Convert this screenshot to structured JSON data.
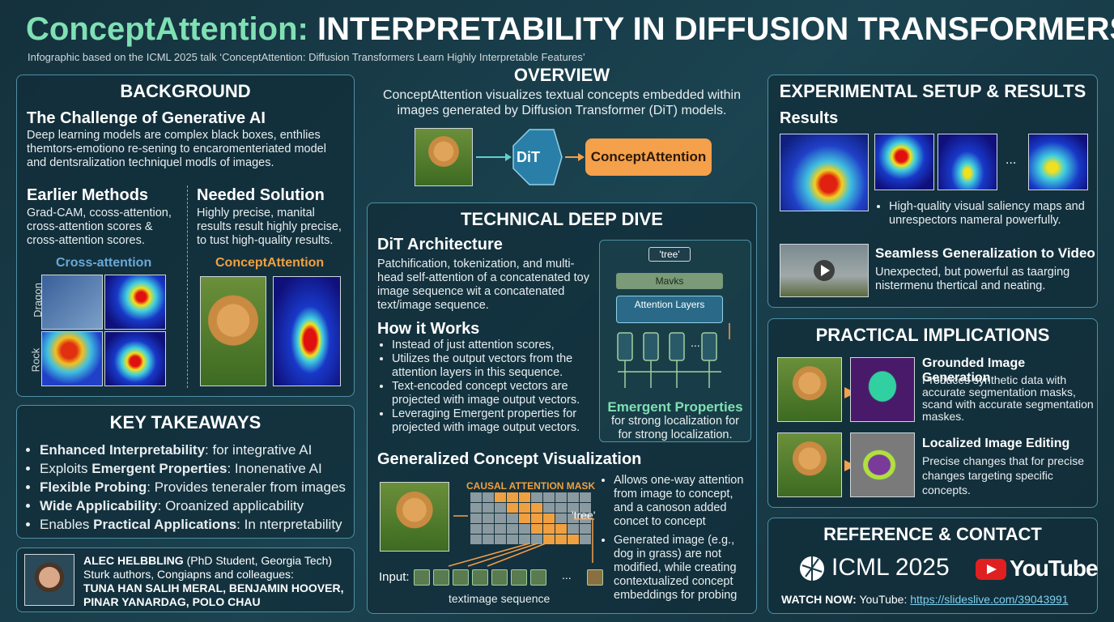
{
  "header": {
    "title_accent": "ConceptAttention:",
    "title_rest": "INTERPRETABILITY IN DIFFUSION TRANSFORMERS",
    "subtitle": "Infographic based on the ICML 2025 talk ‘ConceptAttention: Diffusion Transformers Learn Highly Interpretable Features’"
  },
  "background": {
    "heading": "BACKGROUND",
    "challenge_title": "The Challenge of Generative AI",
    "challenge_text": "Deep learning models are complex black boxes, enthlies themtors-emotiono re-sening to encaromenteriated model and dentsralization techniquel modls of images.",
    "earlier_title": "Earlier Methods",
    "earlier_text": "Grad-CAM, ccoss-attention, cross-attention scores & cross-attention scores.",
    "needed_title": "Needed Solution",
    "needed_text": "Highly precise, manital results result highly precise, to tust high-quality results.",
    "cross_label": "Cross-attention",
    "concept_label": "ConceptAttention",
    "row_labels": [
      "Dragon",
      "Rock"
    ]
  },
  "overview": {
    "heading": "OVERVIEW",
    "text": "ConceptAttention visualizes textual concepts embedded within images generated by Diffusion Transformer (DiT) models.",
    "dit": "DiT",
    "concept_box": "ConceptAttention"
  },
  "deep_dive": {
    "heading": "TECHNICAL DEEP DIVE",
    "arch_title": "DiT Architecture",
    "arch_text": "Patchification, tokenization, and multi-head self-attention of a concatenated toy image sequence wit a concatenated text/image sequence.",
    "how_title": "How it Works",
    "how_items": [
      "Instead of just attention scores,",
      "Utilizes the output vectors from the attention layers in this sequence.",
      "Text-encoded concept vectors are projected with image output vectors.",
      "Leveraging Emergent properties for projected with image output vectors."
    ],
    "diagram": {
      "tree": "'tree'",
      "mavks": "Mavks",
      "attention": "Attention Layers",
      "ellipsis": "...",
      "emergent_title": "Emergent Properties",
      "emergent_text": "for strong localization for for strong localization."
    },
    "gen_title": "Generalized Concept Visualization",
    "mask_label": "CAUSAL ATTENTION MASK",
    "tree_out": "'tree'",
    "input": "Input:",
    "ellipsis": "...",
    "sequence": "textimage sequence",
    "gen_items": [
      "Allows one-way attention from image to concept, and a canoson added concet to concept",
      "Generated image (e.g., dog in grass) are not modified, while creating contextualized concept embeddings for probing"
    ]
  },
  "takeaways": {
    "heading": "KEY TAKEAWAYS",
    "items": [
      {
        "bold": "Enhanced Interpretability",
        "rest": ": for integrative AI"
      },
      {
        "pre": "Exploits ",
        "bold": "Emergent Properties",
        "rest": ": Inonenative AI"
      },
      {
        "bold": "Flexible Probing",
        "rest": ": Provides teneraler from images"
      },
      {
        "bold": "Wide Applicability",
        "rest": ": Oroanized applicability"
      },
      {
        "pre": "Enables ",
        "bold": "Practical Applications",
        "rest": ": In nterpretability"
      }
    ]
  },
  "authors": {
    "name": "ALEC HELBBLING",
    "role": "(PhD Student, Georgia Tech)",
    "line2": "Sturk authors, Congiapns and colleagues:",
    "line3": "TUNA HAN SALIH MERAL, BENJAMIN HOOVER,",
    "line4": "PINAR YANARDAG, POLO CHAU"
  },
  "results": {
    "heading": "EXPERIMENTAL SETUP & RESULTS",
    "results_title": "Results",
    "ellipsis": "...",
    "results_text": "High-quality visual saliency maps and unrespectors nameral powerfully.",
    "video_title": "Seamless Generalization to Video",
    "video_text": "Unexpected, but powerful as taarging nistermenu thertical and neating."
  },
  "implications": {
    "heading": "PRACTICAL IMPLICATIONS",
    "items": [
      {
        "title": "Grounded Image Generation",
        "text": "Produces synthetic data with accurate segmentation masks, scand with accurate segmentation maskes."
      },
      {
        "title": "Localized Image Editing",
        "text": "Precise changes that for precise changes targeting specific concepts."
      }
    ]
  },
  "reference": {
    "heading": "REFERENCE & CONTACT",
    "icml": "ICML 2025",
    "youtube": "YouTube",
    "watch": "WATCH NOW:",
    "watch_rest": "YouTube:",
    "link": "https://slideslive.com/39043991"
  }
}
